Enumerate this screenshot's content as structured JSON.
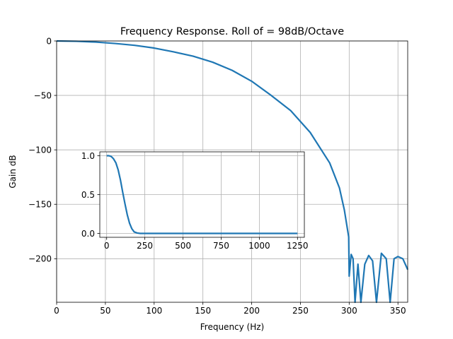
{
  "chart_data": [
    {
      "type": "line",
      "title": "Frequency Response. Roll of = 98dB/Octave",
      "xlabel": "Frequency (Hz)",
      "ylabel": "Gain dB",
      "xlim": [
        0,
        360
      ],
      "ylim": [
        -240,
        0
      ],
      "xticks": [
        0,
        50,
        100,
        150,
        200,
        250,
        300,
        350
      ],
      "yticks": [
        0,
        -50,
        -100,
        -150,
        -200
      ],
      "xtick_labels": [
        "0",
        "50",
        "100",
        "150",
        "200",
        "250",
        "300",
        "350"
      ],
      "ytick_labels": [
        "0",
        "−50",
        "−100",
        "−150",
        "−200"
      ],
      "grid": true,
      "color": "#1f77b4",
      "x": [
        0,
        20,
        40,
        60,
        80,
        100,
        120,
        140,
        160,
        180,
        200,
        220,
        240,
        260,
        280,
        290,
        295,
        299.5,
        300,
        302,
        304,
        306,
        309,
        312,
        316,
        320,
        324,
        328,
        333,
        338,
        342,
        346,
        350,
        355,
        360
      ],
      "y": [
        0,
        -0.3,
        -1,
        -2.3,
        -4,
        -6.5,
        -10,
        -14,
        -19.5,
        -27,
        -37,
        -50,
        -64,
        -84,
        -112,
        -135,
        -155,
        -180,
        -216,
        -196,
        -200,
        -240,
        -205,
        -240,
        -205,
        -197,
        -202,
        -240,
        -195,
        -200,
        -240,
        -200,
        -198,
        -200,
        -210
      ]
    },
    {
      "type": "line",
      "title": "",
      "xlabel": "",
      "ylabel": "",
      "xlim": [
        -45,
        1295
      ],
      "ylim": [
        -0.05,
        1.05
      ],
      "xticks": [
        0,
        250,
        500,
        750,
        1000,
        1250
      ],
      "yticks": [
        0.0,
        0.5,
        1.0
      ],
      "xtick_labels": [
        "0",
        "250",
        "500",
        "750",
        "1000",
        "1250"
      ],
      "ytick_labels": [
        "0.0",
        "0.5",
        "1.0"
      ],
      "grid": true,
      "color": "#1f77b4",
      "x": [
        0,
        15,
        30,
        45,
        60,
        75,
        90,
        105,
        120,
        135,
        150,
        165,
        180,
        200,
        220,
        260,
        400,
        700,
        1000,
        1250
      ],
      "y": [
        1.0,
        1.0,
        0.99,
        0.96,
        0.91,
        0.82,
        0.69,
        0.53,
        0.38,
        0.24,
        0.13,
        0.06,
        0.02,
        0.005,
        0.0,
        0.0,
        0.0,
        0.0,
        0.0,
        0.0
      ]
    }
  ]
}
